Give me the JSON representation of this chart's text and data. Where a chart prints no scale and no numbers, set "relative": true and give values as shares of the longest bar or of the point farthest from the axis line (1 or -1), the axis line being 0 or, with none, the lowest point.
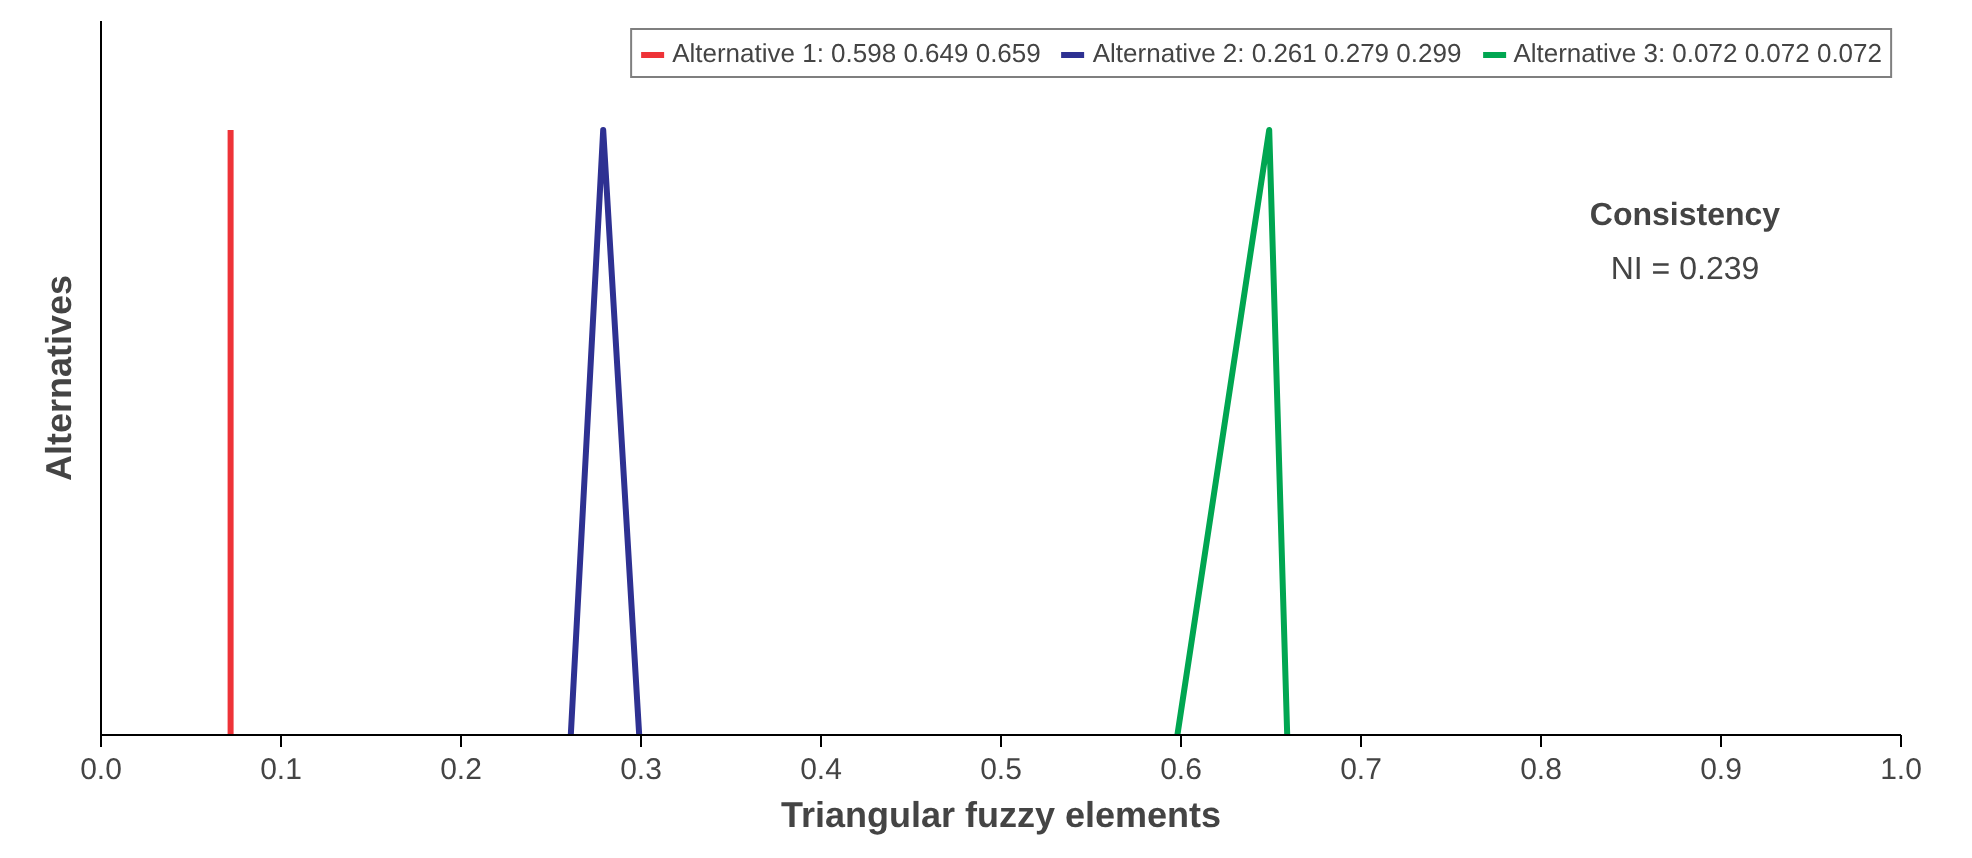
{
  "chart_data": {
    "type": "line",
    "relative": true,
    "xlabel": "Triangular fuzzy elements",
    "ylabel": "Alternatives",
    "xlim": [
      0,
      1
    ],
    "xticks": [
      {
        "value": 0,
        "label": "0.0"
      },
      0.1,
      0.2,
      0.3,
      0.4,
      0.5,
      0.6,
      0.7,
      0.8,
      0.9,
      {
        "value": 1,
        "label": "1.0"
      }
    ],
    "series": [
      {
        "name": "Alternative 1: 0.598 0.649 0.659",
        "color": "#ee3338",
        "x": [
          0.072,
          0.072
        ],
        "values": [
          0,
          1
        ]
      },
      {
        "name": "Alternative 2: 0.261 0.279 0.299",
        "color": "#2e3192",
        "x": [
          0.261,
          0.279,
          0.299
        ],
        "values": [
          0,
          1,
          0
        ]
      },
      {
        "name": "Alternative 3: 0.072 0.072 0.072",
        "color": "#00a651",
        "x": [
          0.598,
          0.649,
          0.659
        ],
        "values": [
          0,
          1,
          0
        ]
      }
    ],
    "annotations": [
      "Consistency",
      "NI = 0.239"
    ],
    "grid": false,
    "legend": "top",
    "marker": "none",
    "line_style": "solid"
  }
}
